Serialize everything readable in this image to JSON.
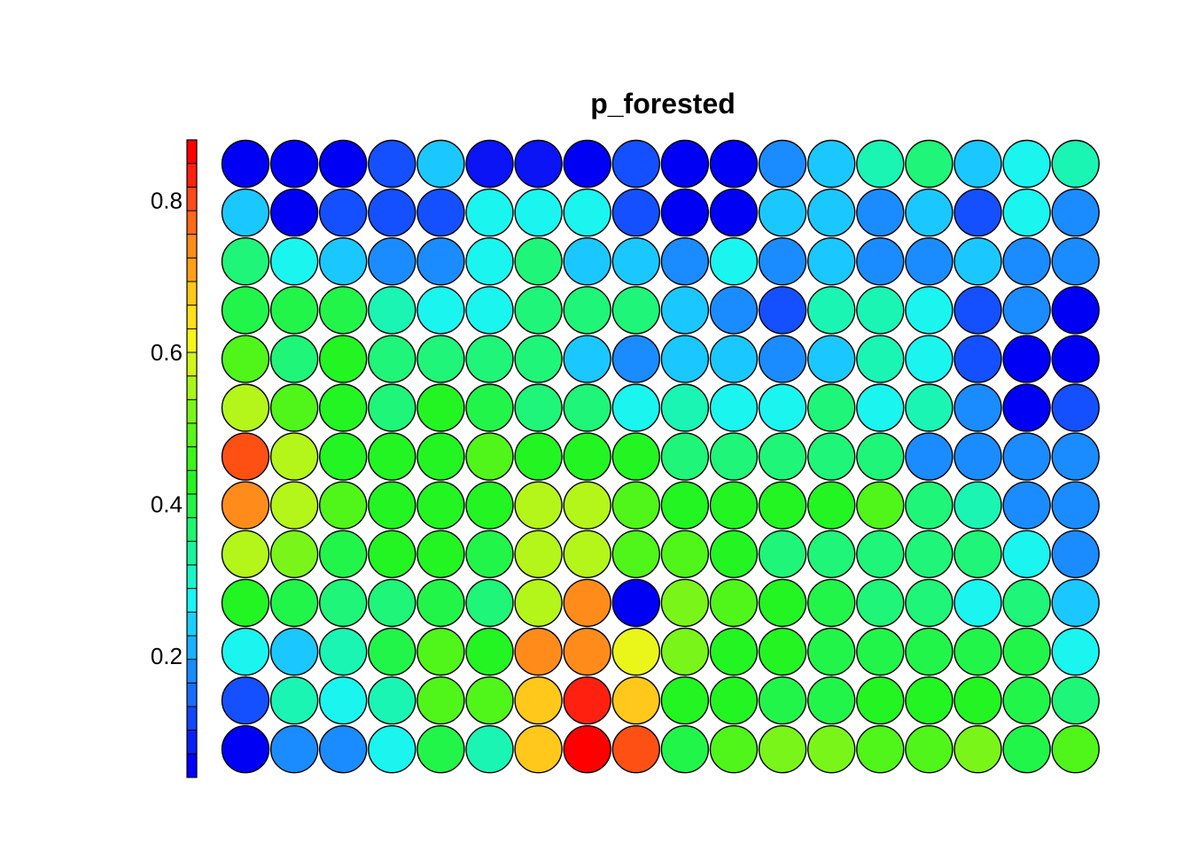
{
  "chart_data": {
    "type": "heatmap",
    "title": "p_forested",
    "rows": 13,
    "cols": 18,
    "colorbar": {
      "ticks": [
        0.2,
        0.4,
        0.6,
        0.8
      ],
      "tick_labels": [
        "0.2",
        "0.4",
        "0.6",
        "0.8"
      ],
      "range": [
        0.04,
        0.88
      ],
      "bands": [
        "#0000ff",
        "#0a1ef7",
        "#1246ff",
        "#1a6cff",
        "#1a8cff",
        "#1ab0ff",
        "#1ad0ff",
        "#1af5f5",
        "#1af5c8",
        "#1af59b",
        "#1ff56e",
        "#22f545",
        "#22f522",
        "#3cf51a",
        "#5af51a",
        "#7af51a",
        "#a8f51a",
        "#d2f51a",
        "#f5f51a",
        "#ffe01a",
        "#ffc81a",
        "#ffa01a",
        "#ff8c1a",
        "#ff6a1a",
        "#ff4a1a",
        "#ff2010",
        "#ff0000"
      ]
    },
    "palette": {
      "0": "#0000f5",
      "1": "#0a14f5",
      "2": "#1450ff",
      "3": "#1a8cff",
      "4": "#1ac8ff",
      "5": "#1af5f0",
      "6": "#1af5b4",
      "7": "#1ff578",
      "8": "#22f54a",
      "9": "#22f522",
      "A": "#50f51a",
      "B": "#7af51a",
      "C": "#b4f51a",
      "D": "#eaf51a",
      "E": "#ffc81a",
      "F": "#ff8c1a",
      "G": "#ff5014",
      "H": "#ff2010",
      "I": "#ff0000"
    },
    "grid": [
      "000241102003467456",
      "402225552004434253",
      "754335744353433433",
      "888655777432665230",
      "A79777743443465200",
      "CA9798775655756302",
      "GC999A999777773333",
      "FCA999CCA9999A7633",
      "CB8998CCAA97777753",
      "987787CF0BA9877574",
      "5468A9FFDB99888885",
      "2656AAEHE998899987",
      "033586EIG8ABBAAB8A"
    ],
    "grid_note_omitted": true
  }
}
